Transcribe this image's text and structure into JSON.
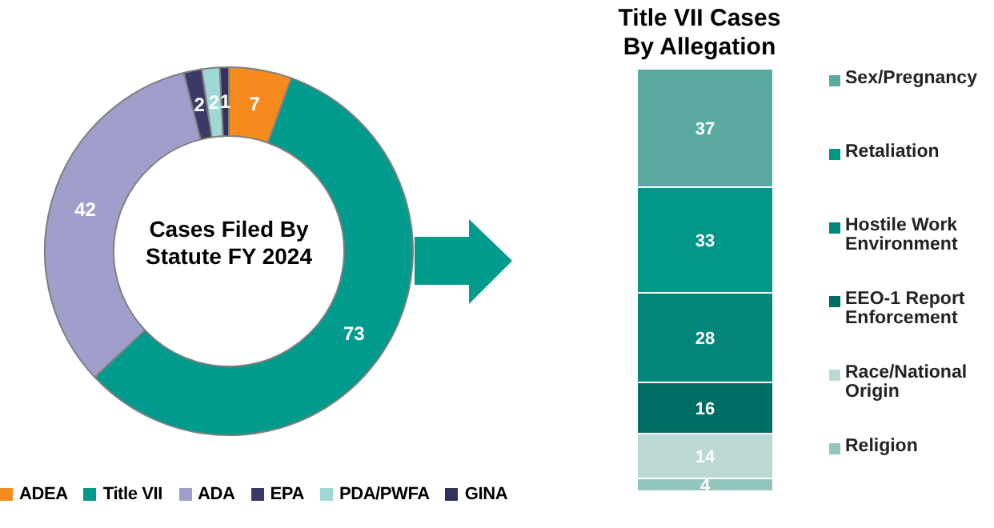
{
  "chart_data": [
    {
      "type": "donut",
      "title": "Cases Filed By Statute FY 2024",
      "categories": [
        "ADEA",
        "Title VII",
        "ADA",
        "EPA",
        "PDA/PWFA",
        "GINA"
      ],
      "values": [
        7,
        73,
        42,
        2,
        2,
        1
      ],
      "colors": [
        "#f58a1f",
        "#009b8c",
        "#a09fcc",
        "#3b3a66",
        "#9fd8d4",
        "#33325e"
      ],
      "data_labels": true,
      "legend": "bottom"
    },
    {
      "type": "bar",
      "title": "Title VII Cases By Allegation",
      "categories": [
        null
      ],
      "stacked": true,
      "data_labels": true,
      "legend": "right",
      "series": [
        {
          "name": "Religion",
          "color": "#94c6be",
          "values": [
            4
          ]
        },
        {
          "name": "Race/National Origin",
          "color": "#bcd8d4",
          "values": [
            14
          ]
        },
        {
          "name": "EEO-1 Report Enforcement",
          "color": "#006d64",
          "values": [
            16
          ]
        },
        {
          "name": "Hostile Work Environment",
          "color": "#00877a",
          "values": [
            28
          ]
        },
        {
          "name": "Retaliation",
          "color": "#009688",
          "values": [
            33
          ]
        },
        {
          "name": "Sex/Pregnancy",
          "color": "#5aaaa0",
          "values": [
            37
          ]
        }
      ]
    }
  ]
}
